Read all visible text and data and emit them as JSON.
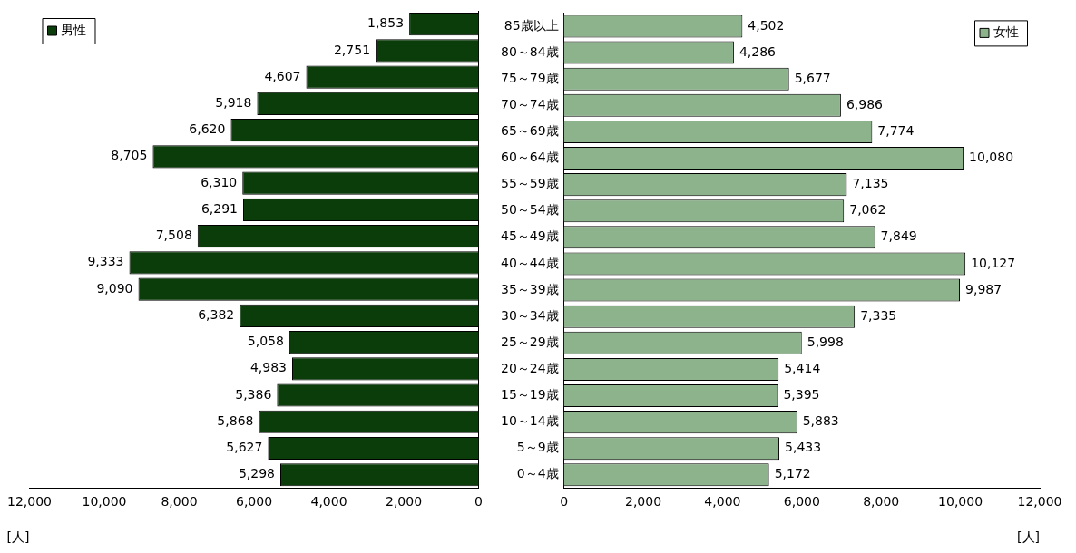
{
  "chart_data": [
    {
      "type": "bar",
      "orientation": "horizontal",
      "categories": [
        null,
        null,
        null,
        null,
        null,
        null,
        null,
        null,
        null,
        null,
        null,
        null,
        null,
        null,
        null,
        null,
        null,
        null
      ],
      "series": [
        {
          "name": "男性",
          "color": "#0b3d0b",
          "values": [
            1853,
            2751,
            4607,
            5918,
            6620,
            8705,
            6310,
            6291,
            7508,
            9333,
            9090,
            6382,
            5058,
            4983,
            5386,
            5868,
            5627,
            5298
          ],
          "value_labels": [
            "1,853",
            "2,751",
            "4,607",
            "5,918",
            "6,620",
            "8,705",
            "6,310",
            "6,291",
            "7,508",
            "9,333",
            "9,090",
            "6,382",
            "5,058",
            "4,983",
            "5,386",
            "5,868",
            "5,627",
            "5,298"
          ]
        }
      ],
      "xlim": [
        12000,
        0
      ],
      "xticks": [
        {
          "value": 12000,
          "label": "12,000"
        },
        {
          "value": 10000,
          "label": "10,000"
        },
        {
          "value": 8000,
          "label": "8,000"
        },
        {
          "value": 6000,
          "label": "6,000"
        },
        {
          "value": 4000,
          "label": "4,000"
        },
        {
          "value": 2000,
          "label": "2,000"
        },
        0
      ],
      "xlabel": "[人]",
      "legend": "top left",
      "grid": false,
      "tick_labels": "x"
    },
    {
      "type": "bar",
      "orientation": "horizontal",
      "categories": [
        "85歳以上",
        "80～84歳",
        "75～79歳",
        "70～74歳",
        "65～69歳",
        "60～64歳",
        "55～59歳",
        "50～54歳",
        "45～49歳",
        "40～44歳",
        "35～39歳",
        "30～34歳",
        "25～29歳",
        "20～24歳",
        "15～19歳",
        "10～14歳",
        "5～9歳",
        "0～4歳"
      ],
      "series": [
        {
          "name": "女性",
          "color": "#8cb38c",
          "values": [
            4502,
            4286,
            5677,
            6986,
            7774,
            10080,
            7135,
            7062,
            7849,
            10127,
            9987,
            7335,
            5998,
            5414,
            5395,
            5883,
            5433,
            5172
          ],
          "value_labels": [
            "4,502",
            "4,286",
            "5,677",
            "6,986",
            "7,774",
            "10,080",
            "7,135",
            "7,062",
            "7,849",
            "10,127",
            "9,987",
            "7,335",
            "5,998",
            "5,414",
            "5,395",
            "5,883",
            "5,433",
            "5,172"
          ]
        }
      ],
      "xlim": [
        0,
        12000
      ],
      "xticks": [
        0,
        {
          "value": 2000,
          "label": "2,000"
        },
        {
          "value": 4000,
          "label": "4,000"
        },
        {
          "value": 6000,
          "label": "6,000"
        },
        {
          "value": 8000,
          "label": "8,000"
        },
        {
          "value": 10000,
          "label": "10,000"
        },
        {
          "value": 12000,
          "label": "12,000"
        }
      ],
      "xlabel": "[人]",
      "legend": "top right",
      "grid": false
    }
  ]
}
